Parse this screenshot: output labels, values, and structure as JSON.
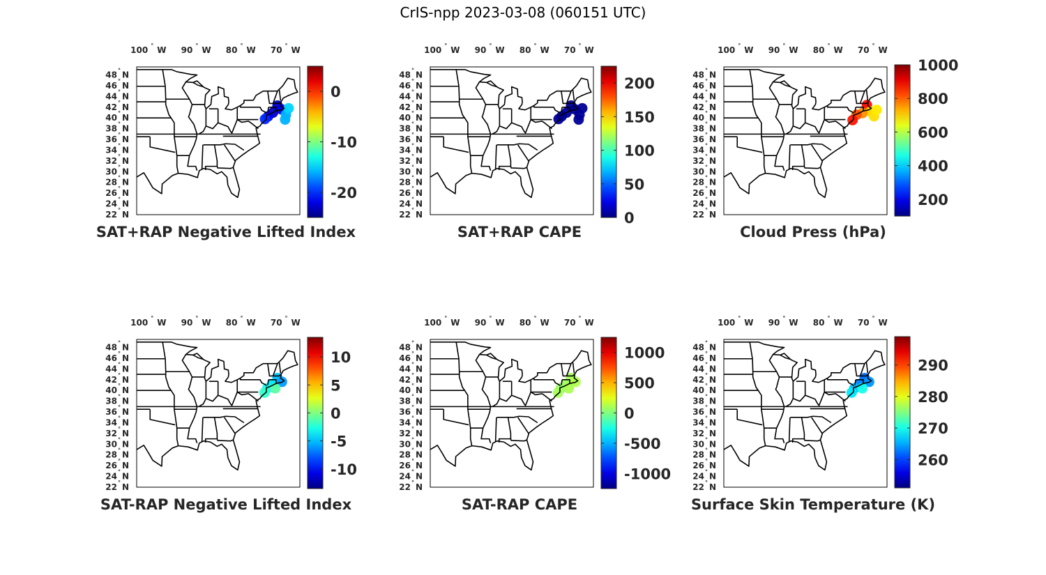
{
  "title": "CrIS-npp 2023-03-08 (060151 UTC)",
  "lon_ticks": [
    {
      "lon": 100,
      "label": "100",
      "hemi": "W"
    },
    {
      "lon": 90,
      "label": "90",
      "hemi": "W"
    },
    {
      "lon": 80,
      "label": "80",
      "hemi": "W"
    },
    {
      "lon": 70,
      "label": "70",
      "hemi": "W"
    }
  ],
  "lat_ticks": [
    {
      "lat": 48,
      "label": "48",
      "hemi": "N"
    },
    {
      "lat": 46,
      "label": "46",
      "hemi": "N"
    },
    {
      "lat": 44,
      "label": "44",
      "hemi": "N"
    },
    {
      "lat": 42,
      "label": "42",
      "hemi": "N"
    },
    {
      "lat": 40,
      "label": "40",
      "hemi": "N"
    },
    {
      "lat": 38,
      "label": "38",
      "hemi": "N"
    },
    {
      "lat": 36,
      "label": "36",
      "hemi": "N"
    },
    {
      "lat": 34,
      "label": "34",
      "hemi": "N"
    },
    {
      "lat": 32,
      "label": "32",
      "hemi": "N"
    },
    {
      "lat": 30,
      "label": "30",
      "hemi": "N"
    },
    {
      "lat": 28,
      "label": "28",
      "hemi": "N"
    },
    {
      "lat": 26,
      "label": "26",
      "hemi": "N"
    },
    {
      "lat": 24,
      "label": "24",
      "hemi": "N"
    },
    {
      "lat": 22,
      "label": "22",
      "hemi": "N"
    }
  ],
  "colormap": "jet",
  "panels": [
    {
      "title": "SAT+RAP Negative Lifted Index",
      "colorbar": {
        "min": -25,
        "max": 5,
        "ticks": [
          {
            "v": 0,
            "label": "0"
          },
          {
            "v": -10,
            "label": "-10"
          },
          {
            "v": -20,
            "label": "-20"
          }
        ]
      },
      "obs": [
        {
          "lon": -71.5,
          "lat": 42.3,
          "value": -23
        },
        {
          "lon": -70.6,
          "lat": 41.6,
          "value": -22
        },
        {
          "lon": -72.5,
          "lat": 41.0,
          "value": -23
        },
        {
          "lon": -73.6,
          "lat": 40.3,
          "value": -22
        },
        {
          "lon": -74.3,
          "lat": 39.8,
          "value": -20
        },
        {
          "lon": -69.6,
          "lat": 40.6,
          "value": -16
        },
        {
          "lon": -69.0,
          "lat": 41.8,
          "value": -15
        },
        {
          "lon": -69.8,
          "lat": 39.7,
          "value": -16
        }
      ]
    },
    {
      "title": "SAT+RAP CAPE",
      "colorbar": {
        "min": 0,
        "max": 225,
        "ticks": [
          {
            "v": 200,
            "label": "200"
          },
          {
            "v": 150,
            "label": "150"
          },
          {
            "v": 100,
            "label": "100"
          },
          {
            "v": 50,
            "label": "50"
          },
          {
            "v": 0,
            "label": "0"
          }
        ]
      },
      "obs": [
        {
          "lon": -71.5,
          "lat": 42.3,
          "value": 5
        },
        {
          "lon": -70.6,
          "lat": 41.6,
          "value": 5
        },
        {
          "lon": -72.5,
          "lat": 41.0,
          "value": 5
        },
        {
          "lon": -73.6,
          "lat": 40.3,
          "value": 5
        },
        {
          "lon": -74.3,
          "lat": 39.8,
          "value": 5
        },
        {
          "lon": -69.6,
          "lat": 40.6,
          "value": 5
        },
        {
          "lon": -69.0,
          "lat": 41.8,
          "value": 5
        },
        {
          "lon": -69.8,
          "lat": 39.7,
          "value": 5
        }
      ]
    },
    {
      "title": "Cloud Press (hPa)",
      "colorbar": {
        "min": 100,
        "max": 1000,
        "ticks": [
          {
            "v": 1000,
            "label": "1000"
          },
          {
            "v": 800,
            "label": "800"
          },
          {
            "v": 600,
            "label": "600"
          },
          {
            "v": 400,
            "label": "400"
          },
          {
            "v": 200,
            "label": "200"
          }
        ]
      },
      "obs": [
        {
          "lon": -71.0,
          "lat": 42.4,
          "value": 880
        },
        {
          "lon": -70.2,
          "lat": 41.2,
          "value": 700
        },
        {
          "lon": -72.0,
          "lat": 40.9,
          "value": 760
        },
        {
          "lon": -73.3,
          "lat": 40.6,
          "value": 820
        },
        {
          "lon": -74.2,
          "lat": 39.6,
          "value": 870
        },
        {
          "lon": -69.4,
          "lat": 40.3,
          "value": 690
        },
        {
          "lon": -68.8,
          "lat": 41.5,
          "value": 680
        }
      ]
    },
    {
      "title": "SAT-RAP Negative Lifted Index",
      "colorbar": {
        "min": -13.5,
        "max": 13.5,
        "ticks": [
          {
            "v": 10,
            "label": "10"
          },
          {
            "v": 5,
            "label": "5"
          },
          {
            "v": 0,
            "label": "0"
          },
          {
            "v": -5,
            "label": "-5"
          },
          {
            "v": -10,
            "label": "-10"
          }
        ]
      },
      "obs": [
        {
          "lon": -71.5,
          "lat": 42.3,
          "value": -5
        },
        {
          "lon": -72.6,
          "lat": 41.2,
          "value": -4
        },
        {
          "lon": -70.5,
          "lat": 41.6,
          "value": -6
        },
        {
          "lon": -73.8,
          "lat": 40.4,
          "value": -3
        },
        {
          "lon": -74.4,
          "lat": 39.6,
          "value": -2
        },
        {
          "lon": -72.0,
          "lat": 40.4,
          "value": -1
        }
      ]
    },
    {
      "title": "SAT-RAP CAPE",
      "colorbar": {
        "min": -1250,
        "max": 1250,
        "ticks": [
          {
            "v": 1000,
            "label": "1000"
          },
          {
            "v": 500,
            "label": "500"
          },
          {
            "v": 0,
            "label": "0"
          },
          {
            "v": -500,
            "label": "-500"
          },
          {
            "v": -1000,
            "label": "-1000"
          }
        ]
      },
      "obs": [
        {
          "lon": -71.5,
          "lat": 42.3,
          "value": 100
        },
        {
          "lon": -72.6,
          "lat": 41.2,
          "value": 80
        },
        {
          "lon": -70.5,
          "lat": 41.6,
          "value": 120
        },
        {
          "lon": -73.8,
          "lat": 40.4,
          "value": 60
        },
        {
          "lon": -74.4,
          "lat": 39.6,
          "value": 90
        },
        {
          "lon": -72.0,
          "lat": 40.4,
          "value": 110
        }
      ]
    },
    {
      "title": "Surface Skin Temperature (K)",
      "colorbar": {
        "min": 251,
        "max": 299,
        "ticks": [
          {
            "v": 290,
            "label": "290"
          },
          {
            "v": 280,
            "label": "280"
          },
          {
            "v": 270,
            "label": "270"
          },
          {
            "v": 260,
            "label": "260"
          }
        ]
      },
      "obs": [
        {
          "lon": -71.5,
          "lat": 42.3,
          "value": 262
        },
        {
          "lon": -72.6,
          "lat": 41.2,
          "value": 263
        },
        {
          "lon": -70.5,
          "lat": 41.6,
          "value": 264
        },
        {
          "lon": -73.8,
          "lat": 40.4,
          "value": 266
        },
        {
          "lon": -74.4,
          "lat": 39.6,
          "value": 268
        },
        {
          "lon": -72.0,
          "lat": 40.4,
          "value": 270
        }
      ]
    }
  ]
}
